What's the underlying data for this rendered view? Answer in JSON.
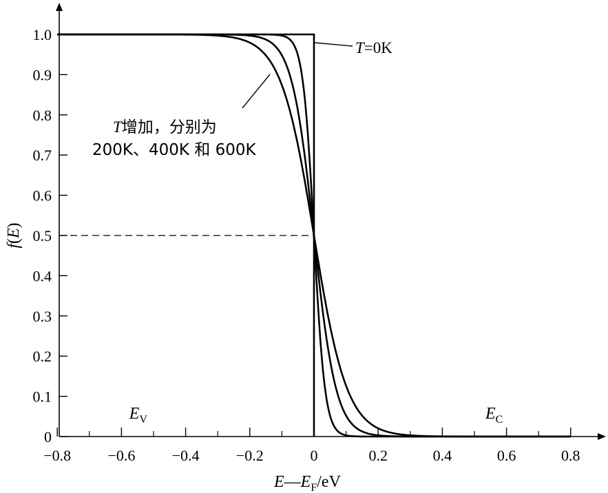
{
  "chart_data": {
    "type": "line",
    "xlim": [
      -0.8,
      0.8
    ],
    "ylim": [
      0,
      1.0
    ],
    "x_ticks": [
      "−0.8",
      "−0.6",
      "−0.4",
      "−0.2",
      "0",
      "0.2",
      "0.4",
      "0.6",
      "0.8"
    ],
    "x_tick_values": [
      -0.8,
      -0.6,
      -0.4,
      -0.2,
      0,
      0.2,
      0.4,
      0.6,
      0.8
    ],
    "y_ticks": [
      "0",
      "0.1",
      "0.2",
      "0.3",
      "0.4",
      "0.5",
      "0.6",
      "0.7",
      "0.8",
      "0.9",
      "1.0"
    ],
    "y_tick_values": [
      0,
      0.1,
      0.2,
      0.3,
      0.4,
      0.5,
      0.6,
      0.7,
      0.8,
      0.9,
      1.0
    ],
    "xlabel": {
      "e": "E",
      "dash": "—",
      "ef": "E",
      "ef_sub": "F",
      "unit": "/eV"
    },
    "ylabel": {
      "f": "f",
      "open": "(",
      "e": "E",
      "close": ")"
    },
    "ev_label": {
      "main": "E",
      "sub": "V",
      "x": -0.55
    },
    "ec_label": {
      "main": "E",
      "sub": "C",
      "x": 0.56
    },
    "reference_line": {
      "y": 0.5,
      "style": "dashed"
    },
    "series": [
      {
        "label_key": "0K",
        "kind": "step",
        "temperature_K": 0
      },
      {
        "kind": "fermi-dirac",
        "temperature_K": 200
      },
      {
        "kind": "fermi-dirac",
        "temperature_K": 400
      },
      {
        "kind": "fermi-dirac",
        "temperature_K": 600
      }
    ],
    "annotations": {
      "t0_T": "T",
      "t0_rest": "=0K",
      "tinc_T": "T",
      "tinc_rest": "增加，分别为",
      "tinc_line2": "200K、400K 和 600K"
    }
  }
}
